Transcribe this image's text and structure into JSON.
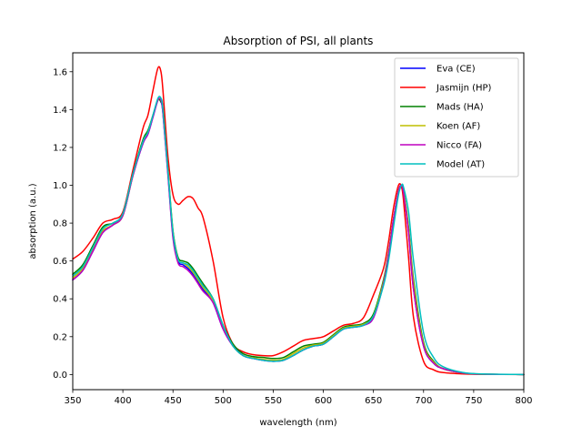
{
  "chart_data": {
    "type": "line",
    "title": "Absorption of PSI, all plants",
    "xlabel": "wavelength (nm)",
    "ylabel": "absorption (a.u.)",
    "xlim": [
      350,
      800
    ],
    "ylim": [
      -0.08,
      1.7
    ],
    "xticks": [
      350,
      400,
      450,
      500,
      550,
      600,
      650,
      700,
      750,
      800
    ],
    "yticks": [
      0.0,
      0.2,
      0.4,
      0.6,
      0.8,
      1.0,
      1.2,
      1.4,
      1.6
    ],
    "xtick_labels": [
      "350",
      "400",
      "450",
      "500",
      "550",
      "600",
      "650",
      "700",
      "750",
      "800"
    ],
    "ytick_labels": [
      "0.0",
      "0.2",
      "0.4",
      "0.6",
      "0.8",
      "1.0",
      "1.2",
      "1.4",
      "1.6"
    ],
    "grid": false,
    "legend_position": "top-right",
    "series": [
      {
        "name": "Eva (CE)",
        "color": "#0000ff",
        "x": [
          350,
          360,
          370,
          380,
          390,
          400,
          410,
          420,
          425,
          430,
          435,
          438,
          440,
          445,
          450,
          455,
          460,
          465,
          470,
          475,
          480,
          490,
          500,
          510,
          520,
          530,
          540,
          550,
          560,
          570,
          580,
          590,
          600,
          610,
          620,
          630,
          640,
          650,
          660,
          665,
          670,
          675,
          678,
          680,
          685,
          690,
          700,
          710,
          720,
          740,
          760,
          800
        ],
        "y": [
          0.5,
          0.55,
          0.65,
          0.75,
          0.79,
          0.84,
          1.05,
          1.22,
          1.27,
          1.36,
          1.45,
          1.44,
          1.38,
          1.06,
          0.73,
          0.6,
          0.58,
          0.56,
          0.53,
          0.49,
          0.45,
          0.38,
          0.24,
          0.15,
          0.1,
          0.085,
          0.075,
          0.07,
          0.075,
          0.1,
          0.13,
          0.15,
          0.16,
          0.2,
          0.24,
          0.25,
          0.26,
          0.3,
          0.48,
          0.63,
          0.82,
          0.97,
          1.0,
          0.96,
          0.75,
          0.45,
          0.15,
          0.06,
          0.03,
          0.008,
          0.002,
          0.0
        ]
      },
      {
        "name": "Jasmijn (HP)",
        "color": "#ff0000",
        "x": [
          350,
          360,
          370,
          380,
          390,
          400,
          410,
          420,
          425,
          430,
          435,
          438,
          440,
          445,
          450,
          455,
          460,
          465,
          470,
          475,
          480,
          490,
          500,
          510,
          520,
          530,
          540,
          550,
          560,
          570,
          580,
          590,
          600,
          610,
          620,
          630,
          640,
          650,
          660,
          665,
          670,
          675,
          678,
          680,
          685,
          690,
          700,
          710,
          720,
          740,
          760,
          800
        ],
        "y": [
          0.61,
          0.65,
          0.72,
          0.8,
          0.82,
          0.86,
          1.08,
          1.3,
          1.37,
          1.5,
          1.62,
          1.6,
          1.5,
          1.15,
          0.95,
          0.9,
          0.92,
          0.94,
          0.93,
          0.88,
          0.83,
          0.6,
          0.3,
          0.16,
          0.12,
          0.105,
          0.1,
          0.1,
          0.12,
          0.15,
          0.18,
          0.19,
          0.2,
          0.23,
          0.26,
          0.27,
          0.3,
          0.42,
          0.56,
          0.7,
          0.88,
          1.0,
          0.99,
          0.92,
          0.62,
          0.3,
          0.07,
          0.025,
          0.01,
          0.003,
          0.001,
          0.0
        ]
      },
      {
        "name": "Mads (HA)",
        "color": "#008000",
        "x": [
          350,
          360,
          370,
          380,
          390,
          400,
          410,
          420,
          425,
          430,
          435,
          438,
          440,
          445,
          450,
          455,
          460,
          465,
          470,
          475,
          480,
          490,
          500,
          510,
          520,
          530,
          540,
          550,
          560,
          570,
          580,
          590,
          600,
          610,
          620,
          630,
          640,
          650,
          660,
          665,
          670,
          675,
          678,
          680,
          685,
          690,
          700,
          710,
          720,
          740,
          760,
          800
        ],
        "y": [
          0.53,
          0.58,
          0.68,
          0.78,
          0.8,
          0.85,
          1.06,
          1.24,
          1.29,
          1.37,
          1.45,
          1.44,
          1.4,
          1.08,
          0.76,
          0.62,
          0.6,
          0.59,
          0.56,
          0.52,
          0.48,
          0.4,
          0.26,
          0.16,
          0.11,
          0.095,
          0.09,
          0.085,
          0.09,
          0.12,
          0.15,
          0.16,
          0.17,
          0.21,
          0.25,
          0.26,
          0.27,
          0.32,
          0.5,
          0.64,
          0.82,
          0.97,
          1.0,
          0.97,
          0.78,
          0.5,
          0.17,
          0.07,
          0.03,
          0.008,
          0.002,
          0.0
        ]
      },
      {
        "name": "Koen (AF)",
        "color": "#bfbf00",
        "x": [
          350,
          360,
          370,
          380,
          390,
          400,
          410,
          420,
          425,
          430,
          435,
          438,
          440,
          445,
          450,
          455,
          460,
          465,
          470,
          475,
          480,
          490,
          500,
          510,
          520,
          530,
          540,
          550,
          560,
          570,
          580,
          590,
          600,
          610,
          620,
          630,
          640,
          650,
          660,
          665,
          670,
          675,
          678,
          680,
          685,
          690,
          700,
          710,
          720,
          740,
          760,
          800
        ],
        "y": [
          0.51,
          0.56,
          0.66,
          0.76,
          0.79,
          0.84,
          1.05,
          1.23,
          1.28,
          1.37,
          1.45,
          1.45,
          1.39,
          1.07,
          0.75,
          0.61,
          0.59,
          0.57,
          0.54,
          0.5,
          0.46,
          0.39,
          0.25,
          0.15,
          0.1,
          0.088,
          0.08,
          0.075,
          0.08,
          0.11,
          0.14,
          0.155,
          0.165,
          0.205,
          0.245,
          0.255,
          0.265,
          0.31,
          0.49,
          0.63,
          0.82,
          0.97,
          1.0,
          0.97,
          0.77,
          0.48,
          0.16,
          0.065,
          0.03,
          0.008,
          0.002,
          0.0
        ]
      },
      {
        "name": "Nicco (FA)",
        "color": "#bf00bf",
        "x": [
          350,
          360,
          370,
          380,
          390,
          400,
          410,
          420,
          425,
          430,
          435,
          438,
          440,
          445,
          450,
          455,
          460,
          465,
          470,
          475,
          480,
          490,
          500,
          510,
          520,
          530,
          540,
          550,
          560,
          570,
          580,
          590,
          600,
          610,
          620,
          630,
          640,
          650,
          660,
          665,
          670,
          675,
          678,
          680,
          685,
          690,
          700,
          710,
          720,
          740,
          760,
          800
        ],
        "y": [
          0.5,
          0.55,
          0.65,
          0.75,
          0.79,
          0.84,
          1.05,
          1.22,
          1.27,
          1.36,
          1.45,
          1.45,
          1.38,
          1.05,
          0.72,
          0.59,
          0.57,
          0.55,
          0.52,
          0.48,
          0.44,
          0.38,
          0.24,
          0.15,
          0.1,
          0.085,
          0.075,
          0.07,
          0.075,
          0.1,
          0.13,
          0.15,
          0.16,
          0.2,
          0.24,
          0.25,
          0.26,
          0.3,
          0.48,
          0.63,
          0.82,
          0.97,
          1.0,
          0.96,
          0.75,
          0.45,
          0.15,
          0.06,
          0.03,
          0.008,
          0.002,
          0.0
        ]
      },
      {
        "name": "Model (AT)",
        "color": "#00bfbf",
        "x": [
          350,
          360,
          370,
          380,
          390,
          400,
          410,
          420,
          425,
          430,
          435,
          438,
          440,
          445,
          450,
          455,
          460,
          465,
          470,
          475,
          480,
          490,
          500,
          510,
          520,
          530,
          540,
          550,
          560,
          570,
          580,
          590,
          600,
          610,
          620,
          630,
          640,
          650,
          660,
          665,
          670,
          675,
          678,
          680,
          685,
          690,
          700,
          710,
          720,
          740,
          760,
          800
        ],
        "y": [
          0.52,
          0.57,
          0.67,
          0.77,
          0.8,
          0.85,
          1.06,
          1.23,
          1.28,
          1.37,
          1.46,
          1.46,
          1.4,
          1.07,
          0.75,
          0.61,
          0.59,
          0.58,
          0.55,
          0.51,
          0.47,
          0.4,
          0.26,
          0.15,
          0.1,
          0.085,
          0.075,
          0.07,
          0.075,
          0.1,
          0.13,
          0.15,
          0.16,
          0.2,
          0.24,
          0.25,
          0.26,
          0.31,
          0.47,
          0.6,
          0.78,
          0.95,
          1.0,
          0.99,
          0.86,
          0.6,
          0.22,
          0.09,
          0.04,
          0.01,
          0.003,
          0.0
        ]
      }
    ]
  }
}
